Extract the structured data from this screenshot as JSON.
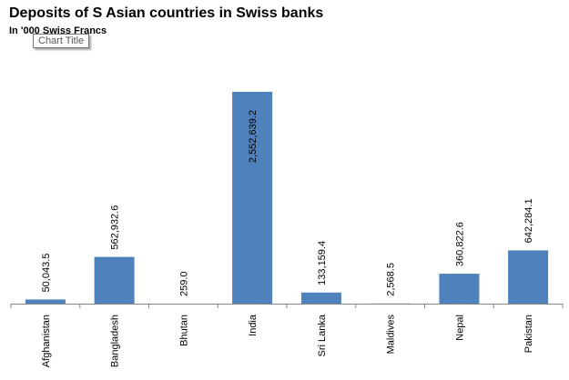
{
  "chart_data": {
    "type": "bar",
    "title": "Deposits of S Asian countries in Swiss banks",
    "subtitle": "In '000 Swiss Francs",
    "categories": [
      "Afghanistan",
      "Bangladesh",
      "Bhutan",
      "India",
      "Sri Lanka",
      "Maldives",
      "Nepal",
      "Pakistan"
    ],
    "values": [
      50043.5,
      562932.6,
      259.0,
      2552639.2,
      133159.4,
      2568.5,
      360822.6,
      642284.1
    ],
    "data_labels": [
      "50,043.5",
      "562,932.6",
      "259.0",
      "2,552,639.2",
      "133,159.4",
      "2,568.5",
      "360,822.6",
      "642,284.1"
    ],
    "xlabel": "",
    "ylabel": "",
    "ylim": [
      0,
      2552639.2
    ],
    "grid": false,
    "legend": "none",
    "bar_color": "#4f81bd",
    "axis_color": "#868686"
  },
  "tooltip": {
    "text": "Chart Title"
  }
}
